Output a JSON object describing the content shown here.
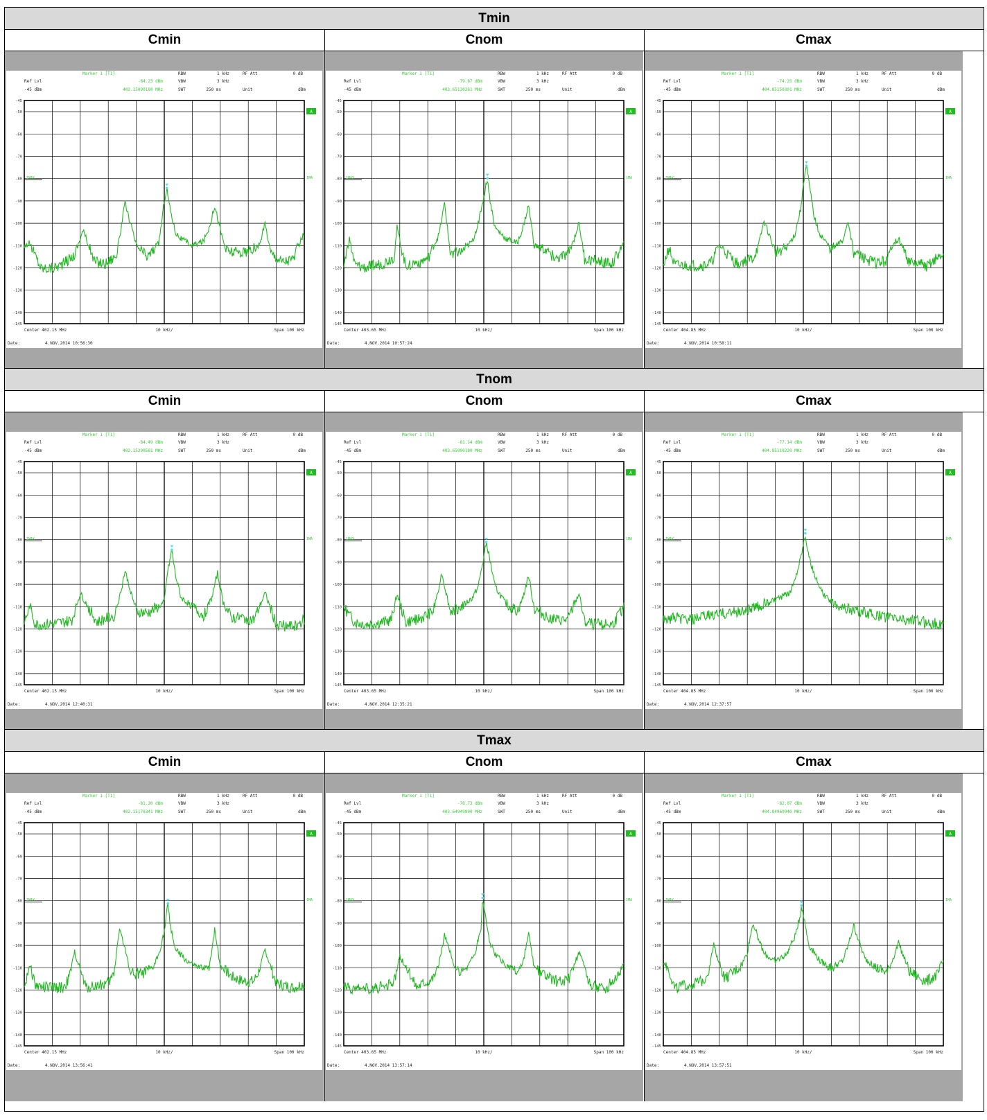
{
  "sections": [
    {
      "label": "Tmin",
      "columns": [
        "Cmin",
        "Cnom",
        "Cmax"
      ],
      "panels": [
        {
          "marker_level": "-84.23 dBm",
          "marker_freq": "402.15090180 MHz",
          "center": "Center 402.15 MHz",
          "date_value": "4.NOV.2014  10:56:30"
        },
        {
          "marker_level": "-79.87 dBm",
          "marker_freq": "403.65130261 MHz",
          "center": "Center 403.65 MHz",
          "date_value": "4.NOV.2014  10:57:24"
        },
        {
          "marker_level": "-74.25 dBm",
          "marker_freq": "404.85150301 MHz",
          "center": "Center 404.85 MHz",
          "date_value": "4.NOV.2014  10:58:11"
        }
      ]
    },
    {
      "label": "Tnom",
      "columns": [
        "Cmin",
        "Cnom",
        "Cmax"
      ],
      "panels": [
        {
          "marker_level": "-84.49 dBm",
          "marker_freq": "402.15290581 MHz",
          "center": "Center 402.15 MHz",
          "date_value": "4.NOV.2014  12:40:31"
        },
        {
          "marker_level": "-81.14 dBm",
          "marker_freq": "403.65090180 MHz",
          "center": "Center 403.65 MHz",
          "date_value": "4.NOV.2014  12:35:21"
        },
        {
          "marker_level": "-77.14 dBm",
          "marker_freq": "404.85110220 MHz",
          "center": "Center 404.85 MHz",
          "date_value": "4.NOV.2014  12:37:57"
        }
      ]
    },
    {
      "label": "Tmax",
      "columns": [
        "Cmin",
        "Cnom",
        "Cmax"
      ],
      "panels": [
        {
          "marker_level": "-81.20 dBm",
          "marker_freq": "402.15170341 MHz",
          "center": "Center 402.15 MHz",
          "date_value": "4.NOV.2014  13:56:41"
        },
        {
          "marker_level": "-78.73 dBm",
          "marker_freq": "403.64949900 MHz",
          "center": "Center 403.65 MHz",
          "date_value": "4.NOV.2014  13:57:14"
        },
        {
          "marker_level": "-82.07 dBm",
          "marker_freq": "404.84969940 MHz",
          "center": "Center 404.85 MHz",
          "date_value": "4.NOV.2014  13:57:51"
        }
      ]
    }
  ],
  "labels": {
    "marker": "Marker 1 [T1]",
    "rbw": "RBW",
    "rbw_value": "1 kHz",
    "vbw": "VBW",
    "vbw_value": "3 kHz",
    "swt": "SWT",
    "swt_value": "250 ms",
    "rfatt": "RF Att",
    "rfatt_value": "0 dB",
    "unit": "Unit",
    "unit_value": "dBm",
    "reflvl": "Ref Lvl",
    "reflvl_value": "-45 dBm",
    "div": "10 kHz/",
    "span": "Span 100 kHz",
    "date": "Date:",
    "trace_tag": "1MAX",
    "a_badge": "A",
    "right_tag": "1MA"
  },
  "colors": {
    "trace": "#1fb81f",
    "marker_text": "#33cc33",
    "marker_point": "#55e0e8",
    "panel_gray": "#a6a6a6",
    "header_gray": "#d9d9d9"
  },
  "chart_data": [
    {
      "type": "line",
      "section": "Tmin",
      "column": "Cmin",
      "x_unit": "kHz offset",
      "y_unit": "dBm",
      "ylim": [
        -145,
        -45
      ],
      "xlim": [
        -50,
        50
      ],
      "grid": true,
      "noise_floor": -119,
      "marker": {
        "x": 0.9,
        "y": -84.23
      },
      "x": [
        -50,
        -48,
        -44,
        -40,
        -36,
        -32,
        -29,
        -25,
        -21,
        -17,
        -14,
        -10,
        -6,
        -2,
        -1,
        0,
        0.9,
        2,
        4,
        6,
        10,
        14,
        16,
        18,
        20,
        22,
        25,
        30,
        34,
        36,
        38,
        42,
        46,
        50
      ],
      "y": [
        -110,
        -109,
        -120,
        -120,
        -118,
        -114,
        -103,
        -117,
        -118,
        -114,
        -91,
        -110,
        -115,
        -109,
        -100,
        -90,
        -84,
        -93,
        -104,
        -107,
        -110,
        -108,
        -102,
        -92,
        -103,
        -112,
        -113,
        -113,
        -110,
        -100,
        -113,
        -117,
        -116,
        -104
      ]
    },
    {
      "type": "line",
      "section": "Tmin",
      "column": "Cnom",
      "x_unit": "kHz offset",
      "y_unit": "dBm",
      "ylim": [
        -145,
        -45
      ],
      "xlim": [
        -50,
        50
      ],
      "grid": true,
      "noise_floor": -119,
      "marker": {
        "x": 1.3,
        "y": -79.87
      },
      "x": [
        -50,
        -48,
        -46,
        -42,
        -36,
        -32,
        -31,
        -28,
        -20,
        -16,
        -14,
        -12,
        -8,
        -4,
        -2,
        0,
        1.3,
        2,
        4,
        8,
        12,
        14,
        16,
        18,
        22,
        26,
        30,
        32,
        34,
        36,
        40,
        46,
        50
      ],
      "y": [
        -119,
        -107,
        -119,
        -120,
        -118,
        -115,
        -102,
        -119,
        -116,
        -105,
        -91,
        -113,
        -113,
        -108,
        -100,
        -88,
        -79.87,
        -88,
        -102,
        -107,
        -109,
        -102,
        -92,
        -110,
        -112,
        -116,
        -114,
        -108,
        -100,
        -116,
        -117,
        -118,
        -109
      ]
    },
    {
      "type": "line",
      "section": "Tmin",
      "column": "Cmax",
      "x_unit": "kHz offset",
      "y_unit": "dBm",
      "ylim": [
        -145,
        -45
      ],
      "xlim": [
        -50,
        50
      ],
      "grid": true,
      "noise_floor": -119,
      "marker": {
        "x": 1.1,
        "y": -74.25
      },
      "x": [
        -50,
        -48,
        -46,
        -42,
        -36,
        -33,
        -30,
        -24,
        -18,
        -16,
        -14,
        -10,
        -6,
        -3,
        -1,
        0,
        1.1,
        2,
        4,
        6,
        10,
        14,
        16,
        18,
        22,
        26,
        30,
        32,
        34,
        38,
        44,
        50
      ],
      "y": [
        -119,
        -111,
        -119,
        -119,
        -119,
        -118,
        -110,
        -118,
        -116,
        -110,
        -99,
        -113,
        -111,
        -105,
        -94,
        -82,
        -74.25,
        -82,
        -98,
        -105,
        -112,
        -108,
        -99,
        -113,
        -116,
        -118,
        -117,
        -109,
        -107,
        -118,
        -119,
        -114
      ]
    },
    {
      "type": "line",
      "section": "Tnom",
      "column": "Cmin",
      "x_unit": "kHz offset",
      "y_unit": "dBm",
      "ylim": [
        -145,
        -45
      ],
      "xlim": [
        -50,
        50
      ],
      "grid": true,
      "noise_floor": -118,
      "marker": {
        "x": 2.7,
        "y": -84.49
      },
      "x": [
        -50,
        -48,
        -46,
        -42,
        -36,
        -33,
        -30,
        -24,
        -18,
        -16,
        -14,
        -10,
        -6,
        -2,
        0,
        1,
        2.7,
        4,
        6,
        10,
        14,
        17,
        19,
        21,
        24,
        28,
        32,
        34,
        36,
        40,
        46,
        50
      ],
      "y": [
        -117,
        -110,
        -118,
        -118,
        -117,
        -116,
        -104,
        -117,
        -114,
        -106,
        -94,
        -112,
        -113,
        -110,
        -108,
        -96,
        -84.49,
        -96,
        -106,
        -110,
        -114,
        -106,
        -95,
        -108,
        -115,
        -115,
        -116,
        -110,
        -104,
        -118,
        -119,
        -116
      ]
    },
    {
      "type": "line",
      "section": "Tnom",
      "column": "Cnom",
      "x_unit": "kHz offset",
      "y_unit": "dBm",
      "ylim": [
        -145,
        -45
      ],
      "xlim": [
        -50,
        50
      ],
      "grid": true,
      "noise_floor": -117,
      "marker": {
        "x": 0.9,
        "y": -81.14
      },
      "x": [
        -50,
        -48,
        -46,
        -42,
        -36,
        -33,
        -31,
        -28,
        -22,
        -18,
        -15,
        -12,
        -8,
        -4,
        -2,
        0,
        0.9,
        2,
        4,
        8,
        12,
        14,
        16,
        18,
        22,
        26,
        30,
        32,
        34,
        36,
        40,
        46,
        50
      ],
      "y": [
        -110,
        -114,
        -117,
        -118,
        -117,
        -116,
        -104,
        -117,
        -115,
        -112,
        -95,
        -112,
        -110,
        -106,
        -101,
        -88,
        -81.14,
        -88,
        -101,
        -109,
        -112,
        -106,
        -96,
        -111,
        -114,
        -116,
        -116,
        -110,
        -104,
        -117,
        -118,
        -118,
        -110
      ]
    },
    {
      "type": "line",
      "section": "Tnom",
      "column": "Cmax",
      "x_unit": "kHz offset",
      "y_unit": "dBm",
      "ylim": [
        -145,
        -45
      ],
      "xlim": [
        -50,
        50
      ],
      "grid": true,
      "noise_floor": -116,
      "marker": {
        "x": 0.7,
        "y": -77.14
      },
      "x": [
        -50,
        -46,
        -40,
        -34,
        -28,
        -22,
        -16,
        -12,
        -8,
        -5,
        -3,
        -1,
        0,
        0.7,
        2,
        4,
        6,
        8,
        12,
        16,
        20,
        26,
        32,
        38,
        44,
        50
      ],
      "y": [
        -116,
        -115,
        -116,
        -114,
        -113,
        -112,
        -110,
        -108,
        -106,
        -104,
        -98,
        -88,
        -82,
        -77.14,
        -88,
        -96,
        -102,
        -106,
        -109,
        -111,
        -112,
        -114,
        -115,
        -116,
        -117,
        -118
      ]
    },
    {
      "type": "line",
      "section": "Tmax",
      "column": "Cmin",
      "x_unit": "kHz offset",
      "y_unit": "dBm",
      "ylim": [
        -145,
        -45
      ],
      "xlim": [
        -50,
        50
      ],
      "grid": true,
      "noise_floor": -119,
      "marker": {
        "x": 1.3,
        "y": -81.2
      },
      "x": [
        -50,
        -48,
        -46,
        -42,
        -36,
        -34,
        -32,
        -28,
        -20,
        -18,
        -16,
        -12,
        -8,
        -4,
        -2,
        0,
        1.3,
        2,
        4,
        8,
        12,
        16,
        18,
        20,
        24,
        28,
        32,
        34,
        36,
        40,
        46,
        50
      ],
      "y": [
        -119,
        -108,
        -118,
        -119,
        -119,
        -115,
        -103,
        -119,
        -117,
        -113,
        -92,
        -112,
        -113,
        -110,
        -104,
        -94,
        -81.2,
        -90,
        -102,
        -107,
        -110,
        -110,
        -93,
        -109,
        -114,
        -116,
        -116,
        -111,
        -102,
        -117,
        -119,
        -117
      ]
    },
    {
      "type": "line",
      "section": "Tmax",
      "column": "Cnom",
      "x_unit": "kHz offset",
      "y_unit": "dBm",
      "ylim": [
        -145,
        -45
      ],
      "xlim": [
        -50,
        50
      ],
      "grid": true,
      "noise_floor": -119,
      "marker": {
        "x": -0.4,
        "y": -78.73
      },
      "x": [
        -50,
        -48,
        -44,
        -38,
        -34,
        -32,
        -30,
        -24,
        -18,
        -16,
        -14,
        -10,
        -6,
        -3,
        -1,
        -0.4,
        0,
        2,
        4,
        8,
        12,
        14,
        16,
        18,
        22,
        26,
        30,
        32,
        34,
        38,
        44,
        50
      ],
      "y": [
        -119,
        -119,
        -120,
        -119,
        -118,
        -116,
        -105,
        -118,
        -114,
        -108,
        -95,
        -112,
        -110,
        -103,
        -92,
        -78.73,
        -82,
        -98,
        -104,
        -109,
        -112,
        -108,
        -95,
        -110,
        -114,
        -116,
        -116,
        -110,
        -103,
        -118,
        -119,
        -109
      ]
    },
    {
      "type": "line",
      "section": "Tmax",
      "column": "Cmax",
      "x_unit": "kHz offset",
      "y_unit": "dBm",
      "ylim": [
        -145,
        -45
      ],
      "xlim": [
        -50,
        50
      ],
      "grid": true,
      "noise_floor": -117,
      "marker": {
        "x": -0.7,
        "y": -82.07
      },
      "x": [
        -50,
        -48,
        -46,
        -42,
        -36,
        -34,
        -32,
        -28,
        -22,
        -20,
        -18,
        -14,
        -10,
        -6,
        -3,
        -1,
        -0.7,
        0,
        2,
        6,
        10,
        14,
        16,
        18,
        22,
        26,
        30,
        32,
        34,
        38,
        44,
        48,
        50
      ],
      "y": [
        -107,
        -111,
        -119,
        -118,
        -116,
        -112,
        -100,
        -115,
        -109,
        -103,
        -90,
        -104,
        -107,
        -104,
        -96,
        -86,
        -82.07,
        -86,
        -100,
        -107,
        -110,
        -107,
        -100,
        -91,
        -106,
        -110,
        -112,
        -106,
        -99,
        -112,
        -116,
        -113,
        -107
      ]
    }
  ]
}
